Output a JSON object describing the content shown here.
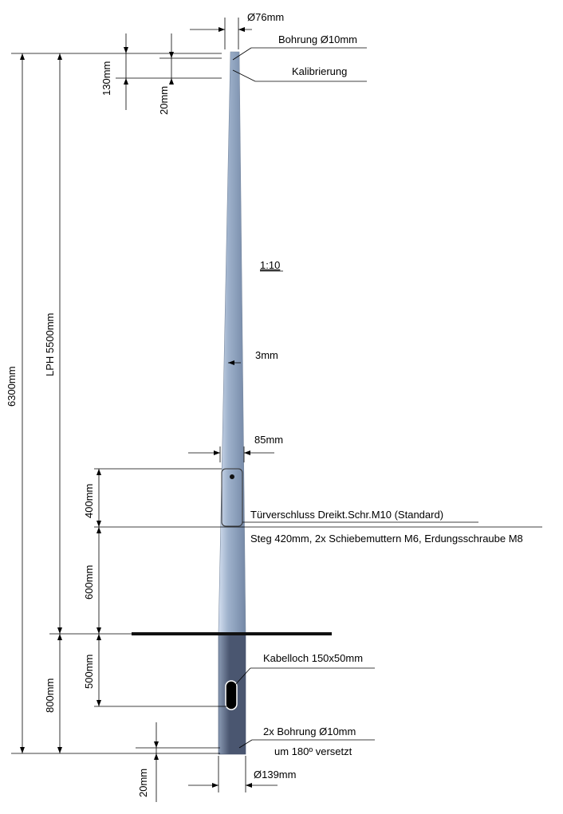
{
  "labels": {
    "top_diameter": "Ø76mm",
    "top_bore": "Bohrung Ø10mm",
    "calibration": "Kalibrierung",
    "dim_130": "130mm",
    "dim_20_top": "20mm",
    "total_height": "6300mm",
    "lph": "LPH 5500mm",
    "scale": "1:10",
    "wall": "3mm",
    "width_85": "85mm",
    "door_height": "400mm",
    "door_lock": "Türverschluss Dreikt.Schr.M10 (Standard)",
    "rail": "Steg 420mm, 2x Schiebemuttern M6, Erdungsschraube M8",
    "dim_600": "600mm",
    "dim_800": "800mm",
    "dim_500": "500mm",
    "cable_hole": "Kabelloch 150x50mm",
    "bottom_bores": "2x Bohrung Ø10mm",
    "offset": "um 180º versetzt",
    "dim_20_bottom": "20mm",
    "base_diameter": "Ø139mm"
  },
  "colors": {
    "pole_light": "#d4dff0",
    "pole_mid": "#9fb2cc",
    "pole_dark": "#7488a6",
    "base_light": "#8a9ab3",
    "base_dark": "#4a5670",
    "ground": "#111111"
  }
}
